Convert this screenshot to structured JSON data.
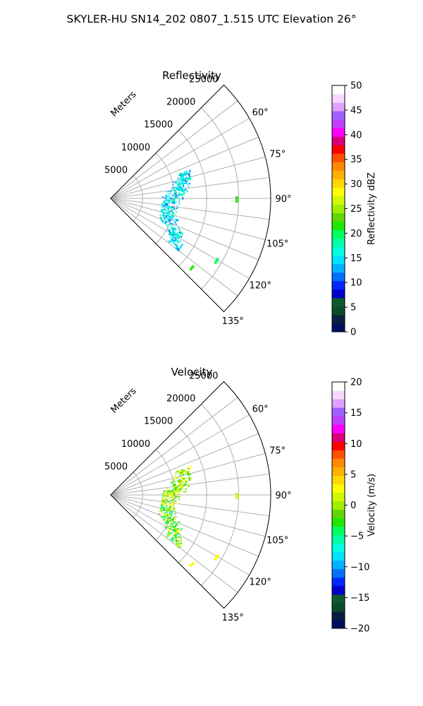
{
  "figure": {
    "suptitle": "SKYLER-HU  SN14_202  0807_1.515 UTC Elevation 26°"
  },
  "chart_data": [
    {
      "type": "heatmap",
      "projection": "polar-sector",
      "title": "Reflectivity",
      "range_label": "Meters",
      "azimuth_range_deg": [
        45,
        135
      ],
      "range_max_m": 25000,
      "range_ticks": [
        5000,
        10000,
        15000,
        20000,
        25000
      ],
      "range_tick_labels": [
        "5000",
        "10000",
        "15000",
        "20000",
        "25000"
      ],
      "azimuth_ticks": [
        60,
        75,
        90,
        105,
        120,
        135
      ],
      "azimuth_tick_labels": [
        "60°",
        "75°",
        "90°",
        "105°",
        "120°",
        "135°"
      ],
      "grid": true,
      "colorbar": {
        "label": "Reflectivity dBZ",
        "vmin": 0,
        "vmax": 50,
        "ticks": [
          0,
          5,
          10,
          15,
          20,
          25,
          30,
          35,
          40,
          45,
          50
        ],
        "tick_labels": [
          "0",
          "5",
          "10",
          "15",
          "20",
          "25",
          "30",
          "35",
          "40",
          "45",
          "50"
        ]
      },
      "echo": {
        "band_range_m": [
          8000,
          15000
        ],
        "band_azimuth_deg": [
          70,
          127
        ],
        "typical_value": 15,
        "value_spread": 4,
        "isolated_returns": [
          {
            "azimuth_deg": 90,
            "range_m": 19500,
            "value": 21
          },
          {
            "azimuth_deg": 120,
            "range_m": 19000,
            "value": 20
          },
          {
            "azimuth_deg": 130,
            "range_m": 16500,
            "value": 21
          }
        ]
      }
    },
    {
      "type": "heatmap",
      "projection": "polar-sector",
      "title": "Velocity",
      "range_label": "Meters",
      "azimuth_range_deg": [
        45,
        135
      ],
      "range_max_m": 25000,
      "range_ticks": [
        5000,
        10000,
        15000,
        20000,
        25000
      ],
      "range_tick_labels": [
        "5000",
        "10000",
        "15000",
        "20000",
        "25000"
      ],
      "azimuth_ticks": [
        60,
        75,
        90,
        105,
        120,
        135
      ],
      "azimuth_tick_labels": [
        "60°",
        "75°",
        "90°",
        "105°",
        "120°",
        "135°"
      ],
      "grid": true,
      "colorbar": {
        "label": "Velocity (m/s)",
        "vmin": -20,
        "vmax": 20,
        "ticks": [
          -20,
          -15,
          -10,
          -5,
          0,
          5,
          10,
          15,
          20
        ],
        "tick_labels": [
          "−20",
          "−15",
          "−10",
          "−5",
          "0",
          "5",
          "10",
          "15",
          "20"
        ]
      },
      "echo": {
        "band_range_m": [
          8000,
          15000
        ],
        "band_azimuth_deg": [
          70,
          127
        ],
        "typical_value": 0,
        "value_spread": 3,
        "isolated_returns": [
          {
            "azimuth_deg": 90,
            "range_m": 19500,
            "value": 2
          },
          {
            "azimuth_deg": 120,
            "range_m": 19000,
            "value": 3
          },
          {
            "azimuth_deg": 130,
            "range_m": 16500,
            "value": 3
          }
        ]
      }
    }
  ],
  "colors": {
    "grid": "#b0b0b0",
    "frame": "#000000",
    "colormap": [
      "#001060",
      "#0a1f3f",
      "#0d4a2a",
      "#105a30",
      "#0000c8",
      "#0028ff",
      "#0070ff",
      "#00b0ff",
      "#00e0ff",
      "#00ffe0",
      "#00ffa8",
      "#00ff60",
      "#20e800",
      "#60d800",
      "#a0ee00",
      "#d0f800",
      "#ffff00",
      "#ffd800",
      "#ffb000",
      "#ff8800",
      "#ff5000",
      "#ff0000",
      "#d8007a",
      "#ff00ff",
      "#c040ff",
      "#a060ff",
      "#e0a0ff",
      "#f8d8ff",
      "#ffffff"
    ]
  }
}
